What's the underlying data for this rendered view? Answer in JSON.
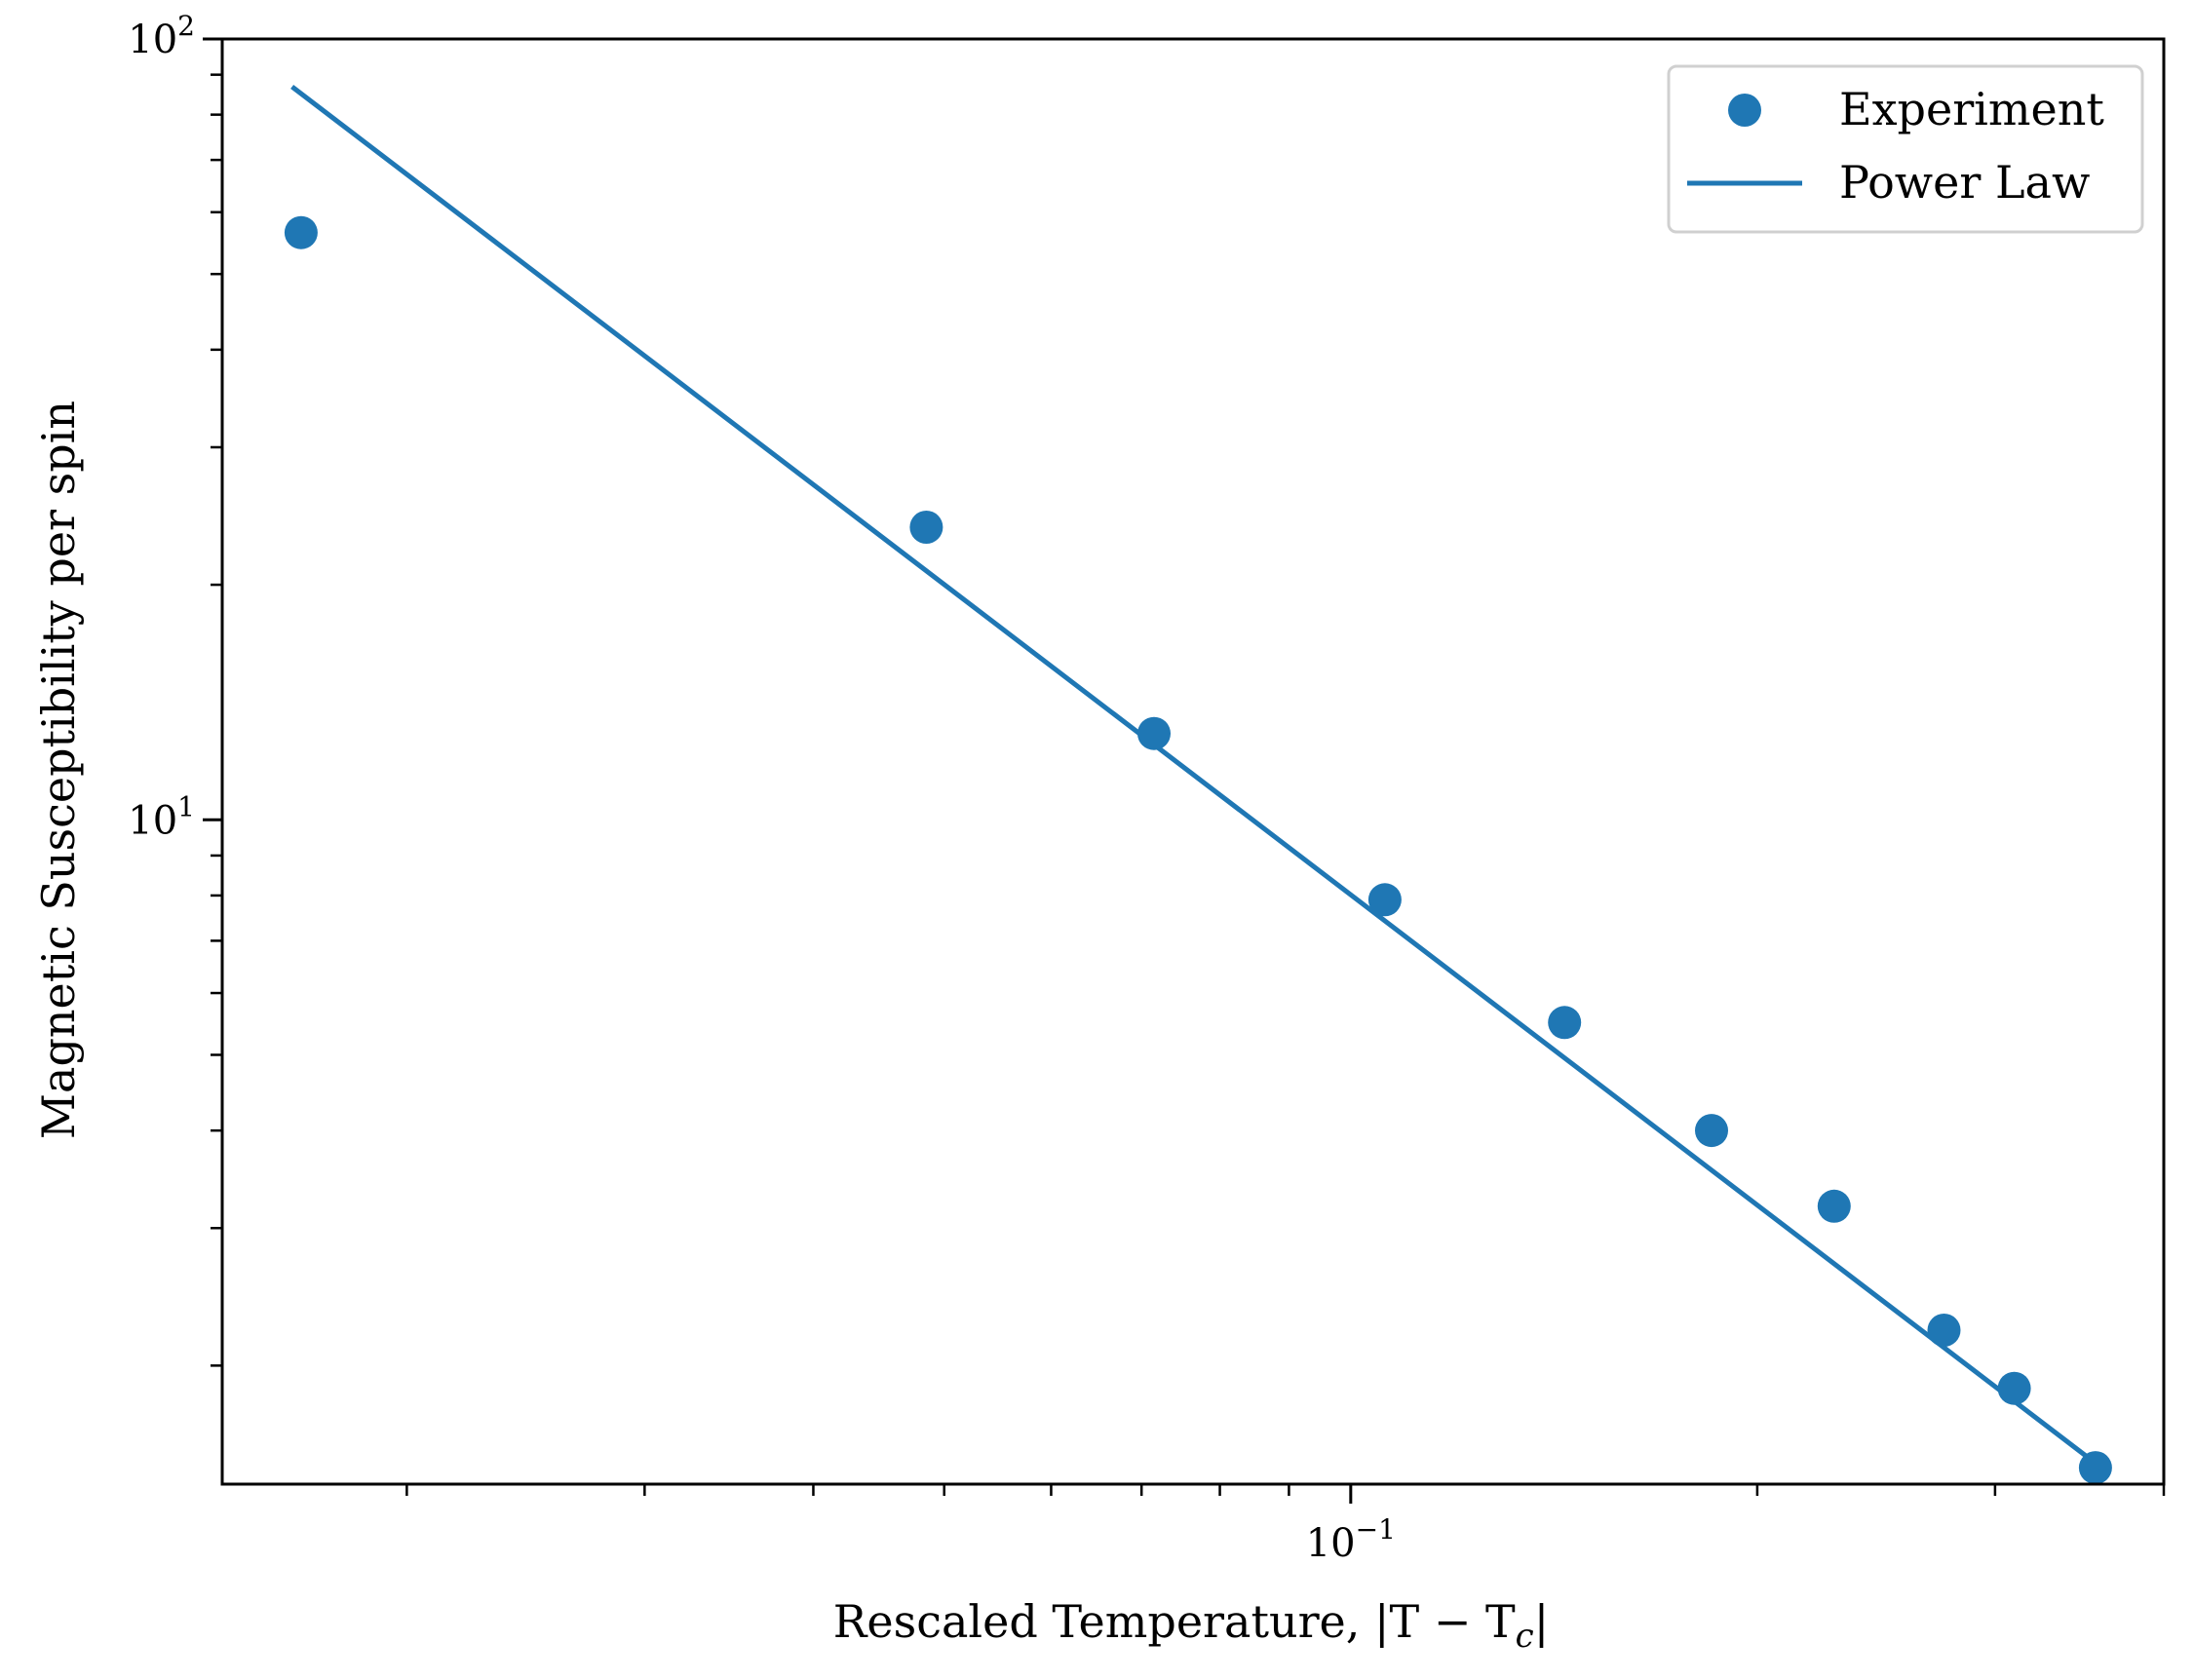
{
  "chart_data": {
    "type": "scatter",
    "xscale": "log",
    "yscale": "log",
    "xlim": [
      0.0146,
      0.4
    ],
    "ylim": [
      1.41,
      100.0
    ],
    "xlabel": "Rescaled Temperature, |T − T",
    "xlabel_sub": "c",
    "xlabel_end": "|",
    "ylabel": "Magnetic Susceptibility per spin",
    "x_ticks": [
      {
        "value": 0.1,
        "base": "10",
        "exp": "−1"
      }
    ],
    "x_minor_ticks": [
      0.02,
      0.03,
      0.04,
      0.05,
      0.06,
      0.07,
      0.08,
      0.09,
      0.2,
      0.3,
      0.4
    ],
    "y_ticks": [
      {
        "value": 10,
        "base": "10",
        "exp": "1"
      },
      {
        "value": 100,
        "base": "10",
        "exp": "2"
      }
    ],
    "y_minor_ticks": [
      2,
      3,
      4,
      5,
      6,
      7,
      8,
      9,
      20,
      30,
      40,
      50,
      60,
      70,
      80,
      90
    ],
    "grid": false,
    "legend_position": "top-right",
    "color": "#1f77b4",
    "series": [
      {
        "name": "Experiment",
        "kind": "scatter",
        "x": [
          0.0167,
          0.0485,
          0.0715,
          0.106,
          0.144,
          0.185,
          0.228,
          0.275,
          0.31,
          0.356
        ],
        "y": [
          56.5,
          23.7,
          12.9,
          7.9,
          5.5,
          4.0,
          3.2,
          2.22,
          1.87,
          1.48
        ]
      },
      {
        "name": "Power Law",
        "kind": "line",
        "x": [
          0.0165,
          0.356
        ],
        "y": [
          86.5,
          1.5
        ]
      }
    ]
  }
}
